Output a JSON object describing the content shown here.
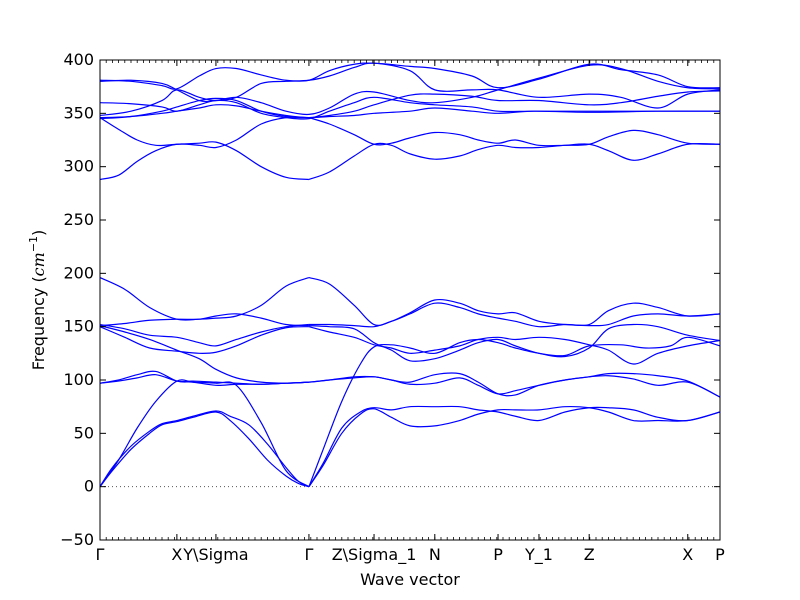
{
  "chart_data": {
    "type": "line",
    "xlabel": "Wave vector",
    "ylabel": "Frequency ($cm^{-1}$)",
    "ylabel_parts": {
      "base": "Frequency (",
      "unit": "cm",
      "exp": "−1",
      "close": ")"
    },
    "ylim": [
      -50,
      400
    ],
    "yticks": [
      -50,
      0,
      50,
      100,
      150,
      200,
      250,
      300,
      350,
      400
    ],
    "ytick_labels": [
      "−50",
      "0",
      "50",
      "100",
      "150",
      "200",
      "250",
      "300",
      "350",
      "400"
    ],
    "xlim": [
      0,
      1
    ],
    "xticks": [
      {
        "label": "Γ",
        "x": 0.0
      },
      {
        "label": "X",
        "x": 0.124
      },
      {
        "label": "Y\\Sigma",
        "x": 0.187
      },
      {
        "label": "Γ",
        "x": 0.337
      },
      {
        "label": "Z\\Sigma_1",
        "x": 0.442
      },
      {
        "label": "N",
        "x": 0.54
      },
      {
        "label": "P",
        "x": 0.642
      },
      {
        "label": "Y_1",
        "x": 0.708
      },
      {
        "label": "Z",
        "x": 0.789
      },
      {
        "label": "X",
        "x": 0.948
      },
      {
        "label": "P",
        "x": 1.0
      }
    ],
    "zero_line": {
      "y": 0,
      "style": "dotted",
      "color": "#555555"
    },
    "line_color": "#0000ff",
    "grid": false,
    "series": [
      {
        "x": [
          0,
          0.02,
          0.05,
          0.08,
          0.1,
          0.124,
          0.15,
          0.187,
          0.21,
          0.24,
          0.27,
          0.3,
          0.32,
          0.337
        ],
        "values": [
          0,
          15,
          35,
          50,
          58,
          61,
          65,
          70,
          62,
          45,
          25,
          10,
          3,
          0
        ]
      },
      {
        "x": [
          0,
          0.02,
          0.05,
          0.08,
          0.1,
          0.124,
          0.15,
          0.187,
          0.21,
          0.24,
          0.27,
          0.3,
          0.32,
          0.337
        ],
        "values": [
          0,
          18,
          38,
          52,
          59,
          62,
          66,
          71,
          66,
          58,
          40,
          18,
          5,
          0
        ]
      },
      {
        "x": [
          0,
          0.03,
          0.06,
          0.09,
          0.124,
          0.15,
          0.187,
          0.22,
          0.26,
          0.3,
          0.337
        ],
        "values": [
          0,
          25,
          55,
          80,
          99,
          98,
          97,
          95,
          60,
          15,
          0
        ]
      },
      {
        "x": [
          0.337,
          0.36,
          0.39,
          0.42,
          0.442,
          0.47,
          0.5,
          0.54,
          0.58,
          0.61,
          0.642,
          0.67,
          0.708,
          0.75,
          0.789,
          0.82,
          0.86,
          0.9,
          0.948,
          1.0
        ],
        "values": [
          0,
          20,
          50,
          68,
          73,
          65,
          57,
          57,
          62,
          68,
          72,
          72,
          72,
          75,
          74,
          70,
          62,
          62,
          62,
          70
        ]
      },
      {
        "x": [
          0.337,
          0.36,
          0.39,
          0.42,
          0.442,
          0.47,
          0.5,
          0.54,
          0.58,
          0.61,
          0.642,
          0.67,
          0.708,
          0.75,
          0.789,
          0.82,
          0.86,
          0.9,
          0.948,
          1.0
        ],
        "values": [
          0,
          22,
          55,
          70,
          74,
          72,
          75,
          75,
          75,
          72,
          70,
          66,
          62,
          70,
          74,
          74,
          72,
          65,
          62,
          70
        ]
      },
      {
        "x": [
          0.337,
          0.36,
          0.39,
          0.42,
          0.442,
          0.47,
          0.5,
          0.54,
          0.58,
          0.61,
          0.642,
          0.67,
          0.708,
          0.75,
          0.789,
          0.84,
          0.88,
          0.92,
          0.948,
          1.0
        ],
        "values": [
          0,
          35,
          80,
          115,
          131,
          133,
          130,
          125,
          135,
          138,
          135,
          130,
          125,
          123,
          132,
          133,
          130,
          132,
          140,
          132
        ]
      },
      {
        "x": [
          0,
          0.03,
          0.06,
          0.09,
          0.124,
          0.15,
          0.187,
          0.22,
          0.26,
          0.3,
          0.337,
          0.37,
          0.41,
          0.442,
          0.47,
          0.5,
          0.54,
          0.58,
          0.61,
          0.642,
          0.67,
          0.708,
          0.75,
          0.789,
          0.82,
          0.86,
          0.9,
          0.948,
          1.0
        ],
        "values": [
          97,
          100,
          105,
          108,
          99,
          98,
          95,
          96,
          96,
          97,
          98,
          100,
          103,
          103,
          100,
          96,
          97,
          102,
          95,
          87,
          90,
          95,
          100,
          103,
          104,
          101,
          95,
          98,
          84
        ]
      },
      {
        "x": [
          0,
          0.03,
          0.06,
          0.09,
          0.124,
          0.15,
          0.187,
          0.22,
          0.26,
          0.3,
          0.337,
          0.37,
          0.41,
          0.442,
          0.47,
          0.5,
          0.54,
          0.58,
          0.61,
          0.642,
          0.67,
          0.708,
          0.75,
          0.789,
          0.82,
          0.86,
          0.9,
          0.948,
          1.0
        ],
        "values": [
          97,
          99,
          102,
          105,
          99,
          99,
          98,
          97,
          96,
          97,
          98,
          100,
          102,
          103,
          100,
          98,
          105,
          106,
          98,
          87,
          86,
          95,
          100,
          103,
          106,
          106,
          104,
          99,
          84
        ]
      },
      {
        "x": [
          0,
          0.04,
          0.08,
          0.124,
          0.16,
          0.187,
          0.22,
          0.26,
          0.3,
          0.337
        ],
        "values": [
          150,
          140,
          130,
          127,
          125,
          126,
          132,
          142,
          149,
          150
        ]
      },
      {
        "x": [
          0,
          0.04,
          0.08,
          0.124,
          0.16,
          0.187,
          0.22,
          0.26,
          0.3,
          0.337
        ],
        "values": [
          151,
          145,
          138,
          128,
          120,
          110,
          102,
          98,
          97,
          98
        ]
      },
      {
        "x": [
          0,
          0.04,
          0.08,
          0.124,
          0.16,
          0.187,
          0.22,
          0.26,
          0.3,
          0.337
        ],
        "values": [
          152,
          148,
          142,
          140,
          135,
          132,
          138,
          145,
          150,
          152
        ]
      },
      {
        "x": [
          0,
          0.04,
          0.08,
          0.124,
          0.16,
          0.187,
          0.22,
          0.26,
          0.3,
          0.337
        ],
        "values": [
          196,
          185,
          168,
          157,
          157,
          158,
          160,
          170,
          188,
          196
        ]
      },
      {
        "x": [
          0,
          0.04,
          0.08,
          0.124,
          0.16,
          0.187,
          0.22,
          0.26,
          0.3,
          0.337
        ],
        "values": [
          151,
          153,
          156,
          157,
          157,
          160,
          162,
          158,
          152,
          151
        ]
      },
      {
        "x": [
          0.337,
          0.37,
          0.41,
          0.442,
          0.47,
          0.5,
          0.54,
          0.58,
          0.61,
          0.642,
          0.67,
          0.708,
          0.75,
          0.789,
          0.82,
          0.86,
          0.9,
          0.948,
          1.0
        ],
        "values": [
          196,
          190,
          170,
          152,
          155,
          162,
          172,
          168,
          162,
          158,
          155,
          150,
          152,
          152,
          165,
          172,
          168,
          160,
          162
        ]
      },
      {
        "x": [
          0.337,
          0.37,
          0.41,
          0.442,
          0.47,
          0.5,
          0.54,
          0.58,
          0.61,
          0.642,
          0.67,
          0.708,
          0.75,
          0.789,
          0.82,
          0.86,
          0.9,
          0.948,
          1.0
        ],
        "values": [
          152,
          152,
          151,
          150,
          155,
          163,
          175,
          172,
          165,
          162,
          163,
          155,
          152,
          151,
          152,
          160,
          162,
          160,
          162
        ]
      },
      {
        "x": [
          0.337,
          0.37,
          0.41,
          0.442,
          0.47,
          0.5,
          0.54,
          0.58,
          0.61,
          0.642,
          0.67,
          0.708,
          0.75,
          0.789,
          0.82,
          0.86,
          0.9,
          0.948,
          1.0
        ],
        "values": [
          151,
          150,
          148,
          135,
          128,
          118,
          120,
          128,
          135,
          138,
          132,
          125,
          122,
          130,
          148,
          152,
          150,
          142,
          137
        ]
      },
      {
        "x": [
          0.337,
          0.37,
          0.41,
          0.442,
          0.47,
          0.5,
          0.54,
          0.58,
          0.61,
          0.642,
          0.67,
          0.708,
          0.75,
          0.789,
          0.82,
          0.86,
          0.9,
          0.948,
          1.0
        ],
        "values": [
          150,
          145,
          140,
          133,
          130,
          125,
          128,
          132,
          138,
          140,
          138,
          140,
          138,
          133,
          128,
          115,
          125,
          132,
          137
        ]
      },
      {
        "x": [
          0,
          0.03,
          0.06,
          0.09,
          0.124,
          0.16,
          0.187,
          0.22,
          0.26,
          0.3,
          0.337
        ],
        "values": [
          288,
          292,
          305,
          315,
          321,
          320,
          318,
          325,
          340,
          346,
          346
        ]
      },
      {
        "x": [
          0,
          0.03,
          0.06,
          0.09,
          0.124,
          0.16,
          0.187,
          0.22,
          0.26,
          0.3,
          0.337
        ],
        "values": [
          346,
          335,
          325,
          320,
          321,
          322,
          323,
          315,
          300,
          290,
          288
        ]
      },
      {
        "x": [
          0.337,
          0.37,
          0.41,
          0.442,
          0.47,
          0.5,
          0.54,
          0.58,
          0.61,
          0.642,
          0.67,
          0.708,
          0.75,
          0.789,
          0.82,
          0.86,
          0.9,
          0.948,
          1.0
        ],
        "values": [
          288,
          295,
          310,
          321,
          320,
          312,
          307,
          310,
          316,
          320,
          318,
          318,
          320,
          321,
          315,
          306,
          312,
          321,
          321
        ]
      },
      {
        "x": [
          0.337,
          0.37,
          0.41,
          0.442,
          0.47,
          0.5,
          0.54,
          0.58,
          0.61,
          0.642,
          0.67,
          0.708,
          0.75,
          0.789,
          0.82,
          0.86,
          0.9,
          0.948,
          1.0
        ],
        "values": [
          346,
          340,
          330,
          321,
          322,
          327,
          332,
          330,
          325,
          322,
          325,
          320,
          320,
          321,
          328,
          334,
          330,
          322,
          321
        ]
      },
      {
        "x": [
          0,
          0.05,
          0.1,
          0.124,
          0.16,
          0.187,
          0.22,
          0.26,
          0.3,
          0.337,
          0.37,
          0.41,
          0.442,
          0.5,
          0.54,
          0.6,
          0.642,
          0.7,
          0.789,
          0.9,
          1.0
        ],
        "values": [
          346,
          347,
          350,
          352,
          355,
          358,
          357,
          352,
          348,
          346,
          347,
          348,
          350,
          352,
          355,
          352,
          350,
          352,
          351,
          352,
          352
        ]
      },
      {
        "x": [
          0,
          0.05,
          0.1,
          0.124,
          0.16,
          0.187,
          0.22,
          0.26,
          0.3,
          0.337,
          0.37,
          0.41,
          0.442,
          0.5,
          0.54,
          0.6,
          0.642,
          0.7,
          0.789,
          0.9,
          1.0
        ],
        "values": [
          360,
          359,
          356,
          352,
          358,
          362,
          360,
          350,
          346,
          345,
          352,
          360,
          365,
          360,
          358,
          356,
          352,
          352,
          352,
          352,
          352
        ]
      },
      {
        "x": [
          0,
          0.05,
          0.1,
          0.124,
          0.16,
          0.187,
          0.22,
          0.26,
          0.3,
          0.337,
          0.37,
          0.41,
          0.442,
          0.5,
          0.54,
          0.6,
          0.642,
          0.708,
          0.789,
          0.84,
          0.9,
          0.948,
          1.0
        ],
        "values": [
          348,
          352,
          362,
          372,
          365,
          362,
          365,
          378,
          380,
          381,
          385,
          393,
          397,
          390,
          372,
          372,
          372,
          365,
          368,
          365,
          355,
          368,
          372
        ]
      },
      {
        "x": [
          0,
          0.05,
          0.1,
          0.124,
          0.16,
          0.187,
          0.22,
          0.26,
          0.3,
          0.337,
          0.37,
          0.41,
          0.442,
          0.5,
          0.54,
          0.6,
          0.642,
          0.708,
          0.789,
          0.84,
          0.9,
          0.948,
          1.0
        ],
        "values": [
          380,
          381,
          378,
          372,
          362,
          362,
          365,
          360,
          352,
          349,
          355,
          368,
          370,
          362,
          360,
          365,
          372,
          383,
          395,
          392,
          380,
          374,
          373
        ]
      },
      {
        "x": [
          0,
          0.05,
          0.1,
          0.124,
          0.16,
          0.187,
          0.22,
          0.26,
          0.3,
          0.337,
          0.37,
          0.41,
          0.442,
          0.5,
          0.54,
          0.6,
          0.642,
          0.708,
          0.789,
          0.84,
          0.9,
          0.948,
          1.0
        ],
        "values": [
          381,
          380,
          376,
          373,
          385,
          392,
          392,
          386,
          381,
          381,
          390,
          396,
          397,
          394,
          392,
          385,
          374,
          382,
          396,
          391,
          386,
          375,
          374
        ]
      },
      {
        "x": [
          0,
          0.05,
          0.1,
          0.124,
          0.16,
          0.187,
          0.22,
          0.26,
          0.3,
          0.337,
          0.37,
          0.41,
          0.442,
          0.5,
          0.54,
          0.6,
          0.642,
          0.708,
          0.789,
          0.84,
          0.9,
          0.948,
          1.0
        ],
        "values": [
          345,
          347,
          352,
          356,
          362,
          364,
          362,
          352,
          347,
          346,
          348,
          352,
          358,
          367,
          368,
          366,
          362,
          362,
          358,
          360,
          366,
          370,
          371
        ]
      }
    ]
  }
}
